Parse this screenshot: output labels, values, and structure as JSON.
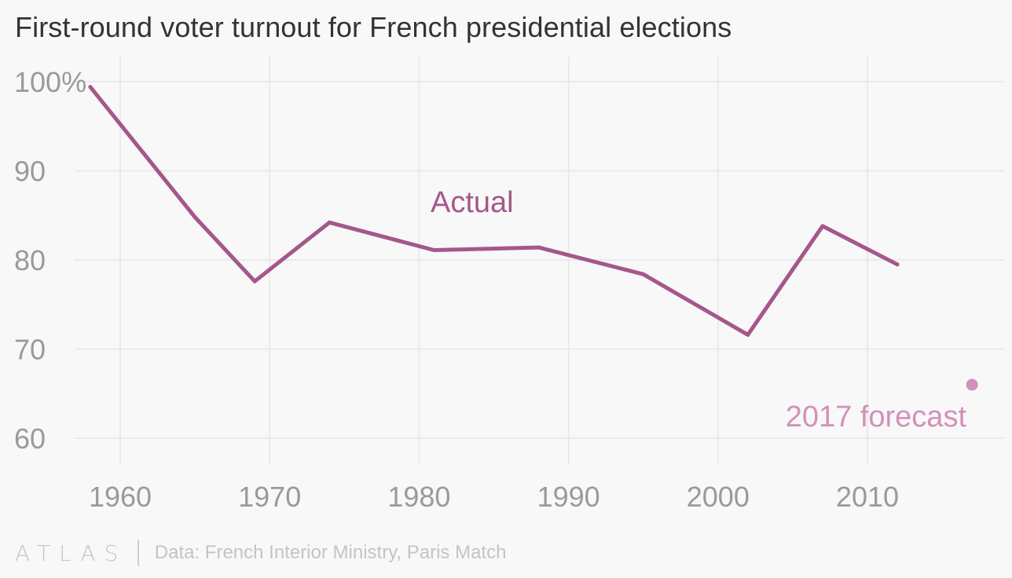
{
  "chart_data": {
    "type": "line",
    "title": "First-round voter turnout for French presidential elections",
    "xlabel": "",
    "ylabel": "",
    "xlim": [
      1955,
      2019
    ],
    "ylim": [
      56,
      103
    ],
    "x_ticks": [
      1960,
      1970,
      1980,
      1990,
      2000,
      2010
    ],
    "y_ticks": [
      {
        "value": 100,
        "label": "100%"
      },
      {
        "value": 90,
        "label": "90"
      },
      {
        "value": 80,
        "label": "80"
      },
      {
        "value": 70,
        "label": "70"
      },
      {
        "value": 60,
        "label": "60"
      }
    ],
    "grid": true,
    "series": [
      {
        "name": "Actual",
        "color": "#a5578a",
        "x": [
          1958,
          1965,
          1969,
          1974,
          1981,
          1988,
          1995,
          2002,
          2007,
          2012
        ],
        "y": [
          99.4,
          84.8,
          77.6,
          84.2,
          81.1,
          81.4,
          78.4,
          71.6,
          83.8,
          79.5
        ]
      },
      {
        "name": "2017 forecast",
        "color": "#d391b8",
        "x": [
          2017
        ],
        "y": [
          66
        ]
      }
    ],
    "annotations": [
      {
        "text": "Actual",
        "series": "Actual",
        "color": "#a5578a"
      },
      {
        "text": "2017 forecast",
        "series": "2017 forecast",
        "color": "#d391b8"
      }
    ]
  },
  "footer": {
    "logo": "ATLAS",
    "source": "Data: French Interior Ministry, Paris Match"
  }
}
